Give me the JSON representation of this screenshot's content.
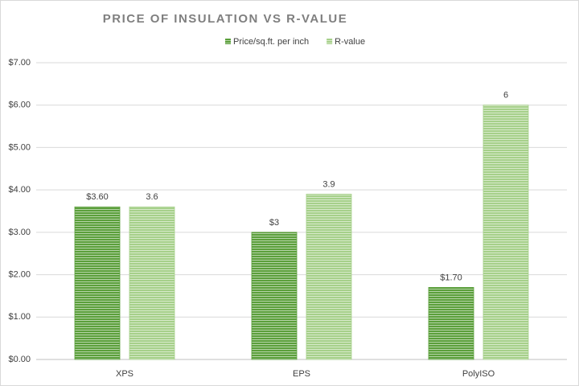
{
  "chart_data": {
    "type": "bar",
    "title": "PRICE OF INSULATION VS R-VALUE",
    "categories": [
      "XPS",
      "EPS",
      "PolyISO"
    ],
    "series": [
      {
        "name": "Price/sq.ft. per inch",
        "color": "#5b9f3b",
        "values": [
          3.6,
          3,
          1.7
        ],
        "value_labels": [
          "$3.60",
          "$3",
          "$1.70"
        ]
      },
      {
        "name": "R-value",
        "color": "#a6d08a",
        "values": [
          3.6,
          3.9,
          6
        ],
        "value_labels": [
          "3.6",
          "3.9",
          "6"
        ]
      }
    ],
    "ylim": [
      0,
      7
    ],
    "yticks": [
      {
        "value": 0,
        "label": "$0.00"
      },
      {
        "value": 1,
        "label": "$1.00"
      },
      {
        "value": 2,
        "label": "$2.00"
      },
      {
        "value": 3,
        "label": "$3.00"
      },
      {
        "value": 4,
        "label": "$4.00"
      },
      {
        "value": 5,
        "label": "$5.00"
      },
      {
        "value": 6,
        "label": "$6.00"
      },
      {
        "value": 7,
        "label": "$7.00"
      }
    ],
    "grid": true,
    "legend": "top"
  }
}
